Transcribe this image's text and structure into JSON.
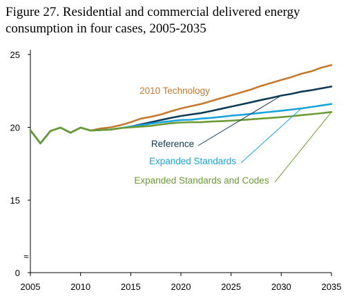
{
  "chart_data": {
    "type": "line",
    "title": "Figure 27. Residential and commercial delivered energy consumption in four cases, 2005-2035",
    "xlabel": "",
    "ylabel": "",
    "xlim": [
      2005,
      2035
    ],
    "ylim": [
      0,
      25
    ],
    "axis_break_symbol": "≈",
    "grid": false,
    "x_ticks": [
      "2005",
      "2010",
      "2015",
      "2020",
      "2025",
      "2030",
      "2035"
    ],
    "y_ticks": [
      "0",
      "15",
      "20",
      "25"
    ],
    "colors": {
      "2010 Technology": "#c8782d",
      "Reference": "#0f3a57",
      "Expanded Standards": "#1aa3dc",
      "Expanded Standards and Codes": "#6b9b32"
    },
    "series": [
      {
        "name": "2010 Technology",
        "x": [
          2005,
          2006,
          2007,
          2008,
          2009,
          2010,
          2011,
          2012,
          2013,
          2014,
          2015,
          2016,
          2017,
          2018,
          2019,
          2020,
          2021,
          2022,
          2023,
          2024,
          2025,
          2026,
          2027,
          2028,
          2029,
          2030,
          2031,
          2032,
          2033,
          2034,
          2035
        ],
        "values": [
          19.8,
          18.9,
          19.75,
          19.98,
          19.63,
          19.98,
          19.78,
          19.92,
          20.0,
          20.15,
          20.35,
          20.6,
          20.72,
          20.88,
          21.1,
          21.3,
          21.45,
          21.6,
          21.8,
          22.0,
          22.2,
          22.4,
          22.6,
          22.85,
          23.05,
          23.25,
          23.45,
          23.68,
          23.85,
          24.1,
          24.28
        ]
      },
      {
        "name": "Reference",
        "x": [
          2005,
          2006,
          2007,
          2008,
          2009,
          2010,
          2011,
          2012,
          2013,
          2014,
          2015,
          2016,
          2017,
          2018,
          2019,
          2020,
          2021,
          2022,
          2023,
          2024,
          2025,
          2026,
          2027,
          2028,
          2029,
          2030,
          2031,
          2032,
          2033,
          2034,
          2035
        ],
        "values": [
          19.8,
          18.9,
          19.75,
          19.98,
          19.63,
          19.98,
          19.78,
          19.82,
          19.85,
          19.95,
          20.05,
          20.2,
          20.35,
          20.5,
          20.65,
          20.78,
          20.88,
          20.98,
          21.12,
          21.27,
          21.42,
          21.57,
          21.72,
          21.88,
          22.02,
          22.18,
          22.3,
          22.45,
          22.55,
          22.68,
          22.8
        ]
      },
      {
        "name": "Expanded Standards",
        "x": [
          2005,
          2006,
          2007,
          2008,
          2009,
          2010,
          2011,
          2012,
          2013,
          2014,
          2015,
          2016,
          2017,
          2018,
          2019,
          2020,
          2021,
          2022,
          2023,
          2024,
          2025,
          2026,
          2027,
          2028,
          2029,
          2030,
          2031,
          2032,
          2033,
          2034,
          2035
        ],
        "values": [
          19.8,
          18.9,
          19.75,
          19.98,
          19.63,
          19.98,
          19.78,
          19.82,
          19.85,
          19.95,
          20.05,
          20.15,
          20.25,
          20.35,
          20.42,
          20.5,
          20.52,
          20.6,
          20.65,
          20.72,
          20.8,
          20.86,
          20.93,
          21.0,
          21.07,
          21.14,
          21.22,
          21.3,
          21.4,
          21.5,
          21.6
        ]
      },
      {
        "name": "Expanded Standards and Codes",
        "x": [
          2005,
          2006,
          2007,
          2008,
          2009,
          2010,
          2011,
          2012,
          2013,
          2014,
          2015,
          2016,
          2017,
          2018,
          2019,
          2020,
          2021,
          2022,
          2023,
          2024,
          2025,
          2026,
          2027,
          2028,
          2029,
          2030,
          2031,
          2032,
          2033,
          2034,
          2035
        ],
        "values": [
          19.8,
          18.9,
          19.75,
          19.98,
          19.63,
          19.98,
          19.78,
          19.82,
          19.85,
          19.95,
          20.0,
          20.05,
          20.1,
          20.2,
          20.28,
          20.33,
          20.35,
          20.35,
          20.4,
          20.42,
          20.46,
          20.5,
          20.55,
          20.6,
          20.65,
          20.7,
          20.76,
          20.84,
          20.9,
          20.97,
          21.05
        ]
      }
    ],
    "annotations": [
      {
        "text": "2010 Technology",
        "series": "2010 Technology"
      },
      {
        "text": "Reference",
        "series": "Reference",
        "leader_to_x": 2030,
        "leader_to_y": 22.18
      },
      {
        "text": "Expanded Standards",
        "series": "Expanded Standards",
        "leader_to_x": 2032,
        "leader_to_y": 21.3
      },
      {
        "text": "Expanded Standards and Codes",
        "series": "Expanded Standards and Codes",
        "leader_to_x": 2035,
        "leader_to_y": 21.05
      }
    ]
  }
}
